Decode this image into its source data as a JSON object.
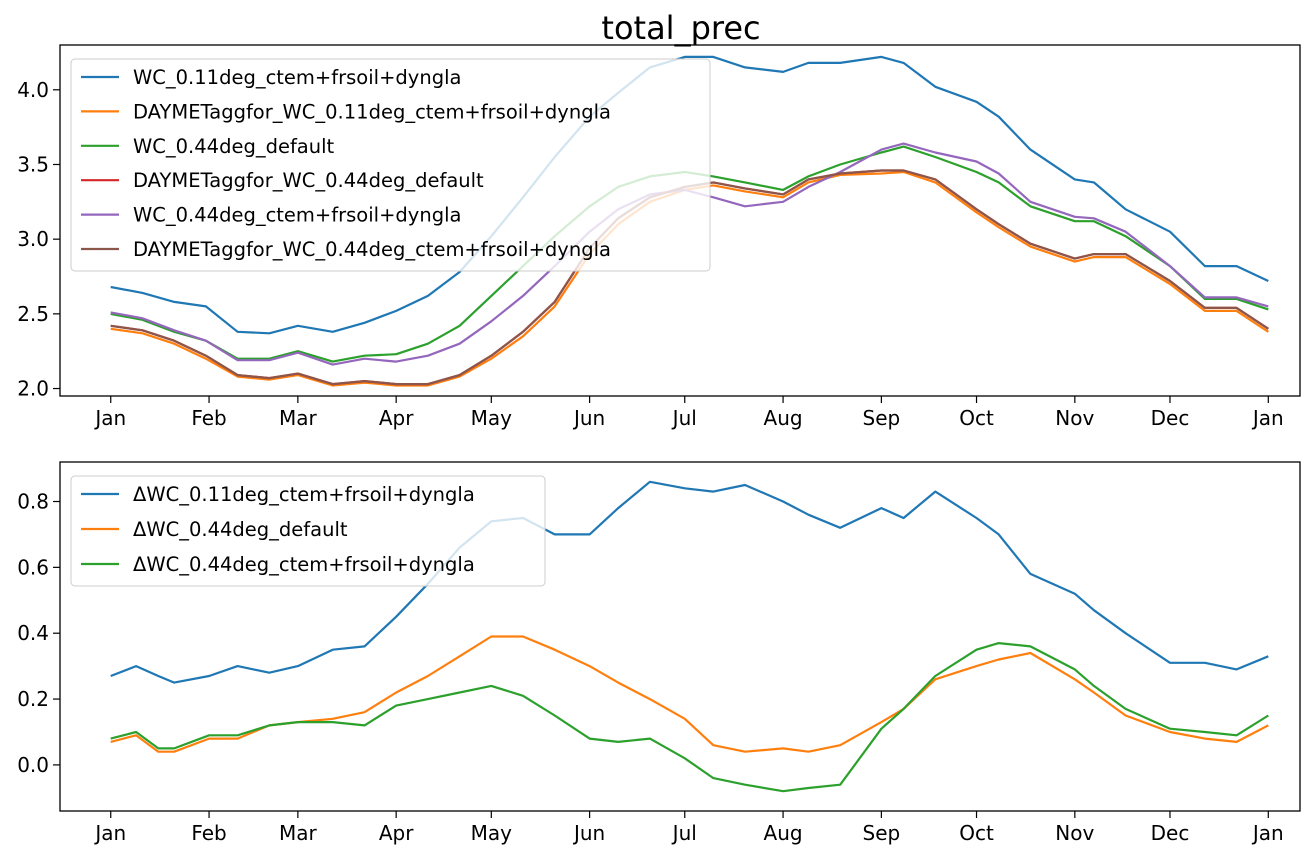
{
  "colors": {
    "tab_blue": "#1f77b4",
    "tab_orange": "#ff7f0e",
    "tab_green": "#2ca02c",
    "tab_red": "#d62728",
    "tab_purple": "#9467bd",
    "tab_brown": "#8c564b"
  },
  "chart_data": [
    {
      "type": "line",
      "title": "total_prec",
      "xlabel": "",
      "ylabel": "",
      "x_tick_labels": [
        "Jan",
        "Feb",
        "Mar",
        "Apr",
        "May",
        "Jun",
        "Jul",
        "Aug",
        "Sep",
        "Oct",
        "Nov",
        "Dec",
        "Jan"
      ],
      "x_tick_days": [
        0,
        31,
        59,
        90,
        120,
        151,
        181,
        212,
        243,
        273,
        304,
        334,
        365
      ],
      "xlim_days": [
        -16,
        375
      ],
      "ylim": [
        1.95,
        4.3
      ],
      "y_ticks": [
        2.0,
        2.5,
        3.0,
        3.5,
        4.0
      ],
      "y_tick_labels": [
        "2.0",
        "2.5",
        "3.0",
        "3.5",
        "4.0"
      ],
      "grid": false,
      "legend": "top-left",
      "series": [
        {
          "name": "WC_0.11deg_ctem+frsoil+dyngla",
          "color": "#1f77b4",
          "x_days": [
            0,
            10,
            20,
            30,
            40,
            50,
            59,
            70,
            80,
            90,
            100,
            110,
            120,
            130,
            140,
            151,
            160,
            170,
            181,
            190,
            200,
            212,
            220,
            230,
            243,
            250,
            260,
            273,
            280,
            290,
            304,
            310,
            320,
            334,
            345,
            355,
            365
          ],
          "values": [
            2.68,
            2.64,
            2.58,
            2.55,
            2.38,
            2.37,
            2.42,
            2.38,
            2.44,
            2.52,
            2.62,
            2.78,
            3.02,
            3.28,
            3.55,
            3.82,
            3.98,
            4.15,
            4.22,
            4.22,
            4.15,
            4.12,
            4.18,
            4.18,
            4.22,
            4.18,
            4.02,
            3.92,
            3.82,
            3.6,
            3.4,
            3.38,
            3.2,
            3.05,
            2.82,
            2.82,
            2.72
          ]
        },
        {
          "name": "DAYMETaggfor_WC_0.11deg_ctem+frsoil+dyngla",
          "color": "#ff7f0e",
          "x_days": [
            0,
            10,
            20,
            30,
            40,
            50,
            59,
            70,
            80,
            90,
            100,
            110,
            120,
            130,
            140,
            151,
            160,
            170,
            181,
            190,
            200,
            212,
            220,
            230,
            243,
            250,
            260,
            273,
            280,
            290,
            304,
            310,
            320,
            334,
            345,
            355,
            365
          ],
          "values": [
            2.4,
            2.37,
            2.3,
            2.2,
            2.08,
            2.06,
            2.09,
            2.02,
            2.04,
            2.02,
            2.02,
            2.08,
            2.2,
            2.35,
            2.55,
            2.9,
            3.1,
            3.25,
            3.33,
            3.36,
            3.32,
            3.28,
            3.38,
            3.43,
            3.44,
            3.45,
            3.38,
            3.18,
            3.08,
            2.95,
            2.85,
            2.88,
            2.88,
            2.7,
            2.52,
            2.52,
            2.38
          ]
        },
        {
          "name": "WC_0.44deg_default",
          "color": "#2ca02c",
          "x_days": [
            0,
            10,
            20,
            30,
            40,
            50,
            59,
            70,
            80,
            90,
            100,
            110,
            120,
            130,
            140,
            151,
            160,
            170,
            181,
            190,
            200,
            212,
            220,
            230,
            243,
            250,
            260,
            273,
            280,
            290,
            304,
            310,
            320,
            334,
            345,
            355,
            365
          ],
          "values": [
            2.5,
            2.46,
            2.38,
            2.32,
            2.2,
            2.2,
            2.25,
            2.18,
            2.22,
            2.23,
            2.3,
            2.42,
            2.62,
            2.82,
            3.02,
            3.22,
            3.35,
            3.42,
            3.45,
            3.42,
            3.38,
            3.33,
            3.42,
            3.5,
            3.58,
            3.62,
            3.55,
            3.45,
            3.38,
            3.22,
            3.12,
            3.12,
            3.02,
            2.82,
            2.6,
            2.6,
            2.53
          ]
        },
        {
          "name": "DAYMETaggfor_WC_0.44deg_default",
          "color": "#d62728",
          "x_days": [
            0,
            10,
            20,
            30,
            40,
            50,
            59,
            70,
            80,
            90,
            100,
            110,
            120,
            130,
            140,
            151,
            160,
            170,
            181,
            190,
            200,
            212,
            220,
            230,
            243,
            250,
            260,
            273,
            280,
            290,
            304,
            310,
            320,
            334,
            345,
            355,
            365
          ],
          "values": [
            2.42,
            2.39,
            2.32,
            2.22,
            2.09,
            2.07,
            2.1,
            2.03,
            2.05,
            2.03,
            2.03,
            2.09,
            2.22,
            2.38,
            2.58,
            2.94,
            3.14,
            3.28,
            3.35,
            3.38,
            3.34,
            3.3,
            3.4,
            3.44,
            3.46,
            3.46,
            3.4,
            3.2,
            3.1,
            2.97,
            2.87,
            2.9,
            2.9,
            2.72,
            2.54,
            2.54,
            2.4
          ]
        },
        {
          "name": "WC_0.44deg_ctem+frsoil+dyngla",
          "color": "#9467bd",
          "x_days": [
            0,
            10,
            20,
            30,
            40,
            50,
            59,
            70,
            80,
            90,
            100,
            110,
            120,
            130,
            140,
            151,
            160,
            170,
            181,
            190,
            200,
            212,
            220,
            230,
            243,
            250,
            260,
            273,
            280,
            290,
            304,
            310,
            320,
            334,
            345,
            355,
            365
          ],
          "values": [
            2.51,
            2.47,
            2.39,
            2.32,
            2.19,
            2.19,
            2.24,
            2.16,
            2.2,
            2.18,
            2.22,
            2.3,
            2.45,
            2.62,
            2.82,
            3.05,
            3.2,
            3.3,
            3.33,
            3.28,
            3.22,
            3.25,
            3.35,
            3.45,
            3.6,
            3.64,
            3.58,
            3.52,
            3.44,
            3.25,
            3.15,
            3.14,
            3.05,
            2.82,
            2.61,
            2.61,
            2.55
          ]
        },
        {
          "name": "DAYMETaggfor_WC_0.44deg_ctem+frsoil+dyngla",
          "color": "#8c564b",
          "x_days": [
            0,
            10,
            20,
            30,
            40,
            50,
            59,
            70,
            80,
            90,
            100,
            110,
            120,
            130,
            140,
            151,
            160,
            170,
            181,
            190,
            200,
            212,
            220,
            230,
            243,
            250,
            260,
            273,
            280,
            290,
            304,
            310,
            320,
            334,
            345,
            355,
            365
          ],
          "values": [
            2.42,
            2.39,
            2.32,
            2.22,
            2.09,
            2.07,
            2.1,
            2.03,
            2.05,
            2.03,
            2.03,
            2.09,
            2.22,
            2.38,
            2.58,
            2.94,
            3.14,
            3.28,
            3.35,
            3.38,
            3.34,
            3.3,
            3.4,
            3.44,
            3.46,
            3.46,
            3.4,
            3.2,
            3.1,
            2.97,
            2.87,
            2.9,
            2.9,
            2.72,
            2.54,
            2.54,
            2.4
          ]
        }
      ]
    },
    {
      "type": "line",
      "title": "",
      "xlabel": "",
      "ylabel": "",
      "x_tick_labels": [
        "Jan",
        "Feb",
        "Mar",
        "Apr",
        "May",
        "Jun",
        "Jul",
        "Aug",
        "Sep",
        "Oct",
        "Nov",
        "Dec",
        "Jan"
      ],
      "x_tick_days": [
        0,
        31,
        59,
        90,
        120,
        151,
        181,
        212,
        243,
        273,
        304,
        334,
        365
      ],
      "xlim_days": [
        -16,
        375
      ],
      "ylim": [
        -0.14,
        0.92
      ],
      "y_ticks": [
        0.0,
        0.2,
        0.4,
        0.6,
        0.8
      ],
      "y_tick_labels": [
        "0.0",
        "0.2",
        "0.4",
        "0.6",
        "0.8"
      ],
      "grid": false,
      "legend": "top-left",
      "series": [
        {
          "name": "ΔWC_0.11deg_ctem+frsoil+dyngla",
          "color": "#1f77b4",
          "x_days": [
            0,
            8,
            15,
            20,
            31,
            40,
            50,
            59,
            70,
            80,
            90,
            100,
            110,
            120,
            130,
            140,
            151,
            160,
            170,
            181,
            190,
            200,
            212,
            220,
            230,
            243,
            250,
            260,
            273,
            280,
            290,
            304,
            310,
            320,
            334,
            345,
            355,
            365
          ],
          "values": [
            0.27,
            0.3,
            0.27,
            0.25,
            0.27,
            0.3,
            0.28,
            0.3,
            0.35,
            0.36,
            0.45,
            0.55,
            0.66,
            0.74,
            0.75,
            0.7,
            0.7,
            0.78,
            0.86,
            0.84,
            0.83,
            0.85,
            0.8,
            0.76,
            0.72,
            0.78,
            0.75,
            0.83,
            0.75,
            0.7,
            0.58,
            0.52,
            0.47,
            0.4,
            0.31,
            0.31,
            0.29,
            0.33
          ]
        },
        {
          "name": "ΔWC_0.44deg_default",
          "color": "#ff7f0e",
          "x_days": [
            0,
            8,
            15,
            20,
            31,
            40,
            50,
            59,
            70,
            80,
            90,
            100,
            110,
            120,
            130,
            140,
            151,
            160,
            170,
            181,
            190,
            200,
            212,
            220,
            230,
            243,
            250,
            260,
            273,
            280,
            290,
            304,
            310,
            320,
            334,
            345,
            355,
            365
          ],
          "values": [
            0.07,
            0.09,
            0.04,
            0.04,
            0.08,
            0.08,
            0.12,
            0.13,
            0.14,
            0.16,
            0.22,
            0.27,
            0.33,
            0.39,
            0.39,
            0.35,
            0.3,
            0.25,
            0.2,
            0.14,
            0.06,
            0.04,
            0.05,
            0.04,
            0.06,
            0.13,
            0.17,
            0.26,
            0.3,
            0.32,
            0.34,
            0.26,
            0.22,
            0.15,
            0.1,
            0.08,
            0.07,
            0.12
          ]
        },
        {
          "name": "ΔWC_0.44deg_ctem+frsoil+dyngla",
          "color": "#2ca02c",
          "x_days": [
            0,
            8,
            15,
            20,
            31,
            40,
            50,
            59,
            70,
            80,
            90,
            100,
            110,
            120,
            130,
            140,
            151,
            160,
            170,
            181,
            190,
            200,
            212,
            220,
            230,
            243,
            250,
            260,
            273,
            280,
            290,
            304,
            310,
            320,
            334,
            345,
            355,
            365
          ],
          "values": [
            0.08,
            0.1,
            0.05,
            0.05,
            0.09,
            0.09,
            0.12,
            0.13,
            0.13,
            0.12,
            0.18,
            0.2,
            0.22,
            0.24,
            0.21,
            0.15,
            0.08,
            0.07,
            0.08,
            0.02,
            -0.04,
            -0.06,
            -0.08,
            -0.07,
            -0.06,
            0.11,
            0.17,
            0.27,
            0.35,
            0.37,
            0.36,
            0.29,
            0.24,
            0.17,
            0.11,
            0.1,
            0.09,
            0.15
          ]
        }
      ]
    }
  ]
}
